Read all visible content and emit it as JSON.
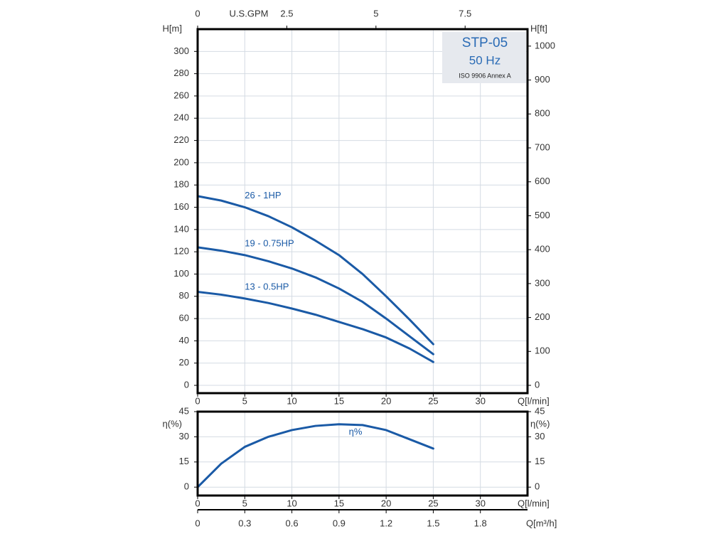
{
  "chart_data": [
    {
      "type": "line",
      "x": [
        0,
        2.5,
        5,
        7.5,
        10,
        12.5,
        15,
        17.5,
        20,
        22.5,
        25
      ],
      "series": [
        {
          "name": "26 - 1HP",
          "color": "#1a5aa6",
          "values": [
            170,
            166,
            160,
            152,
            142,
            130,
            117,
            100,
            80,
            59,
            37
          ]
        },
        {
          "name": "19 - 0.75HP",
          "color": "#1a5aa6",
          "values": [
            124,
            121,
            117,
            111.5,
            105,
            97,
            87,
            75,
            60,
            44,
            28
          ]
        },
        {
          "name": "13 - 0.5HP",
          "color": "#1a5aa6",
          "values": [
            84,
            81.5,
            78,
            74,
            69,
            63.5,
            57,
            50.5,
            43,
            33,
            21
          ]
        }
      ],
      "xlim": [
        0,
        35
      ],
      "xticks": [
        0,
        5,
        10,
        15,
        20,
        25,
        30
      ],
      "x_label": "Q[l/min]",
      "ylim": [
        -7,
        320
      ],
      "yticks": [
        0,
        20,
        40,
        60,
        80,
        100,
        120,
        140,
        160,
        180,
        200,
        220,
        240,
        260,
        280,
        300
      ],
      "y_label": "H[m]",
      "y2lim": [
        -23,
        1050
      ],
      "y2ticks": [
        0,
        100,
        200,
        300,
        400,
        500,
        600,
        700,
        800,
        900,
        1000
      ],
      "y2_label": "H[ft]",
      "x2lim": [
        0,
        9.25
      ],
      "x2ticks": [
        0,
        2.5,
        5,
        7.5
      ],
      "x2_label": "U.S.GPM",
      "annotations": [
        "STP-05",
        "50 Hz",
        "ISO 9906 Annex A"
      ],
      "grid": true
    },
    {
      "type": "line",
      "x": [
        0,
        2.5,
        5,
        7.5,
        10,
        12.5,
        15,
        17.5,
        20,
        22.5,
        25
      ],
      "series": [
        {
          "name": "η%",
          "color": "#1a5aa6",
          "values": [
            0,
            14,
            24,
            30,
            34,
            36.5,
            37.5,
            37,
            34,
            28.5,
            23
          ]
        }
      ],
      "xlim": [
        0,
        35
      ],
      "xticks": [
        0,
        5,
        10,
        15,
        20,
        25,
        30
      ],
      "x_label": "Q[l/min]",
      "ylim": [
        -5,
        45
      ],
      "yticks": [
        0,
        15,
        30,
        45
      ],
      "y_label": "η(%)",
      "y2lim": [
        -5,
        45
      ],
      "y2ticks": [
        0,
        15,
        30,
        45
      ],
      "y2_label": "η(%)",
      "x2lim": [
        0,
        2.1
      ],
      "x2ticks": [
        0,
        0.3,
        0.6,
        0.9,
        1.2,
        1.5,
        1.8
      ],
      "x2_label": "Q[m³/h]",
      "grid": true
    }
  ]
}
